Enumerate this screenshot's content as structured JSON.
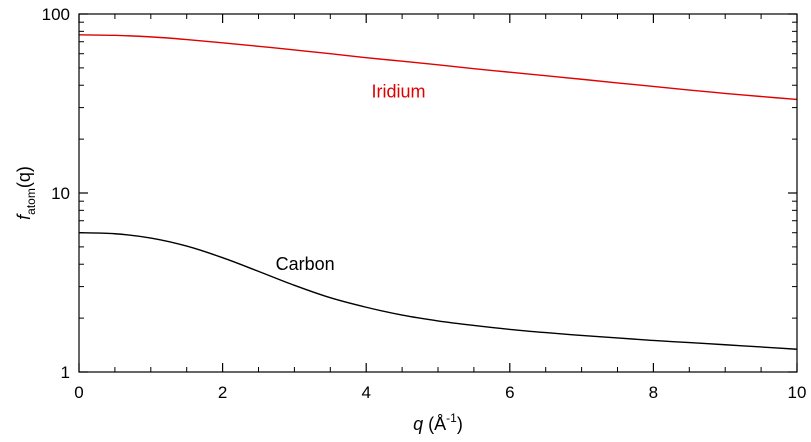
{
  "chart_data": {
    "type": "line",
    "title": "",
    "xlabel": {
      "var": "q",
      "rest": " (Å",
      "sup": "-1",
      "close": ")"
    },
    "ylabel": {
      "main": "f",
      "sub": "atom",
      "rest": "(q)"
    },
    "xlim": [
      0,
      10
    ],
    "ylim": [
      1,
      100
    ],
    "yscale": "log",
    "grid": false,
    "xticks": [
      0,
      2,
      4,
      6,
      8,
      10
    ],
    "xtick_labels": [
      "0",
      "2",
      "4",
      "6",
      "8",
      "10"
    ],
    "xminor": [
      0.5,
      1,
      1.5,
      2.5,
      3,
      3.5,
      4.5,
      5,
      5.5,
      6.5,
      7,
      7.5,
      8.5,
      9,
      9.5
    ],
    "yticks": [
      1,
      10,
      100
    ],
    "ytick_labels": [
      "1",
      "10",
      "100"
    ],
    "yminor": [
      2,
      3,
      4,
      5,
      6,
      7,
      8,
      9,
      20,
      30,
      40,
      50,
      60,
      70,
      80,
      90
    ],
    "series": [
      {
        "name": "Iridium",
        "color": "#e00000",
        "label_at": {
          "x": 4.45,
          "y": 37
        },
        "x": [
          0,
          0.5,
          1,
          1.5,
          2,
          2.5,
          3,
          3.5,
          4,
          4.5,
          5,
          5.5,
          6,
          6.5,
          7,
          7.5,
          8,
          8.5,
          9,
          9.5,
          10
        ],
        "y": [
          76.5,
          76,
          74.5,
          72,
          69,
          66,
          63,
          60,
          57,
          54.5,
          52,
          49.5,
          47.3,
          45.2,
          43.2,
          41.2,
          39.4,
          37.6,
          36,
          34.6,
          33.3
        ]
      },
      {
        "name": "Carbon",
        "color": "#000000",
        "label_at": {
          "x": 3.15,
          "y": 4.0
        },
        "x": [
          0,
          0.5,
          1,
          1.5,
          2,
          2.5,
          3,
          3.5,
          4,
          4.5,
          5,
          5.5,
          6,
          6.5,
          7,
          7.5,
          8,
          8.5,
          9,
          9.5,
          10
        ],
        "y": [
          6.0,
          5.92,
          5.6,
          5.05,
          4.35,
          3.65,
          3.05,
          2.6,
          2.3,
          2.08,
          1.93,
          1.82,
          1.73,
          1.66,
          1.6,
          1.55,
          1.5,
          1.46,
          1.42,
          1.38,
          1.34
        ]
      }
    ]
  }
}
